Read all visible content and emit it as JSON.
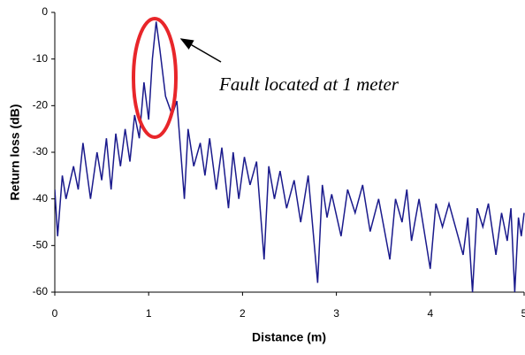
{
  "chart_data": {
    "type": "line",
    "xlabel": "Distance (m)",
    "ylabel": "Return loss (dB)",
    "annotation": "Fault located at 1 meter",
    "xlim": [
      0,
      5
    ],
    "xticks": [
      0,
      1,
      2,
      3,
      4,
      5
    ],
    "ylim": [
      -60,
      0
    ],
    "yticks": [
      0,
      -10,
      -20,
      -30,
      -40,
      -50,
      -60
    ],
    "grid": false,
    "series": [
      {
        "color": "#1a1a8c",
        "x": [
          0,
          0.03,
          0.08,
          0.12,
          0.2,
          0.25,
          0.3,
          0.38,
          0.45,
          0.5,
          0.55,
          0.6,
          0.65,
          0.7,
          0.75,
          0.8,
          0.85,
          0.9,
          0.95,
          1.0,
          1.04,
          1.08,
          1.12,
          1.18,
          1.25,
          1.3,
          1.38,
          1.42,
          1.48,
          1.55,
          1.6,
          1.65,
          1.72,
          1.78,
          1.85,
          1.9,
          1.96,
          2.02,
          2.08,
          2.15,
          2.23,
          2.28,
          2.34,
          2.4,
          2.47,
          2.55,
          2.62,
          2.7,
          2.8,
          2.85,
          2.9,
          2.95,
          3.05,
          3.12,
          3.2,
          3.28,
          3.36,
          3.45,
          3.57,
          3.63,
          3.7,
          3.75,
          3.8,
          3.88,
          4.0,
          4.06,
          4.13,
          4.2,
          4.35,
          4.4,
          4.45,
          4.5,
          4.56,
          4.62,
          4.7,
          4.76,
          4.82,
          4.86,
          4.9,
          4.94,
          4.97,
          5.0
        ],
        "values": [
          -38,
          -48,
          -35,
          -40,
          -33,
          -38,
          -28,
          -40,
          -30,
          -36,
          -27,
          -38,
          -26,
          -33,
          -25,
          -32,
          -22,
          -27,
          -15,
          -23,
          -10,
          -2,
          -8,
          -18,
          -22,
          -19,
          -40,
          -25,
          -33,
          -28,
          -35,
          -27,
          -38,
          -29,
          -42,
          -30,
          -40,
          -31,
          -37,
          -32,
          -53,
          -33,
          -40,
          -34,
          -42,
          -36,
          -45,
          -35,
          -58,
          -37,
          -44,
          -39,
          -48,
          -38,
          -43,
          -37,
          -47,
          -40,
          -53,
          -40,
          -45,
          -38,
          -49,
          -40,
          -55,
          -41,
          -46,
          -41,
          -52,
          -44,
          -60,
          -42,
          -46,
          -41,
          -52,
          -43,
          -49,
          -42,
          -60,
          -44,
          -48,
          -43
        ]
      }
    ]
  }
}
